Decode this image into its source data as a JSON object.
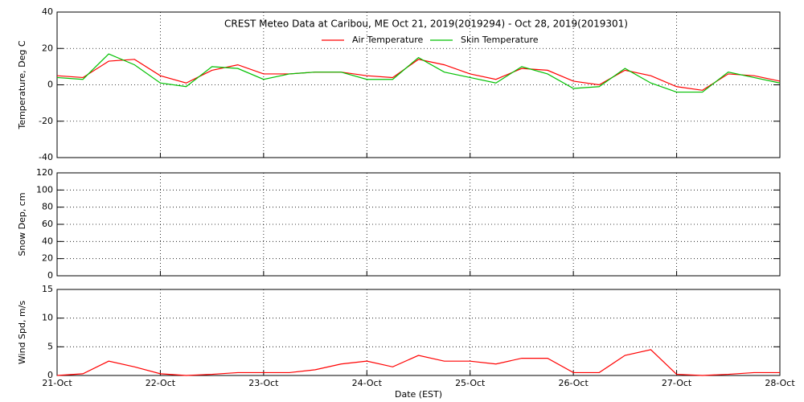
{
  "chart_data": [
    {
      "type": "line",
      "title": "CREST Meteo Data at Caribou, ME   Oct 21, 2019(2019294) - Oct 28, 2019(2019301)",
      "ylabel": "Temperature, Deg C",
      "legend": "top",
      "grid": true,
      "xlim": [
        0,
        7
      ],
      "xticks": [
        0,
        1,
        2,
        3,
        4,
        5,
        6,
        7
      ],
      "ylim": [
        -40,
        40
      ],
      "yticks": [
        -40,
        -20,
        0,
        20,
        40
      ],
      "x": [
        0,
        0.25,
        0.5,
        0.75,
        1,
        1.25,
        1.5,
        1.75,
        2,
        2.25,
        2.5,
        2.75,
        3,
        3.25,
        3.5,
        3.75,
        4,
        4.25,
        4.5,
        4.75,
        5,
        5.25,
        5.5,
        5.75,
        6,
        6.25,
        6.5,
        6.75,
        7
      ],
      "series": [
        {
          "name": "Air Temperature",
          "color": "#ff0000",
          "values": [
            5,
            4,
            13,
            14,
            5,
            1,
            8,
            11,
            6,
            6,
            7,
            7,
            5,
            4,
            14,
            11,
            6,
            3,
            9,
            8,
            2,
            0,
            8,
            5,
            -1,
            -3,
            6,
            5,
            2
          ]
        },
        {
          "name": "Skin Temperature",
          "color": "#00c000",
          "values": [
            4,
            3,
            17,
            11,
            1,
            -1,
            10,
            9,
            3,
            6,
            7,
            7,
            3,
            3,
            15,
            7,
            4,
            1,
            10,
            6,
            -2,
            -1,
            9,
            1,
            -4,
            -4,
            7,
            4,
            1
          ]
        }
      ]
    },
    {
      "type": "line",
      "ylabel": "Snow Dep, cm",
      "grid": true,
      "xlim": [
        0,
        7
      ],
      "xticks": [
        0,
        1,
        2,
        3,
        4,
        5,
        6,
        7
      ],
      "ylim": [
        0,
        120
      ],
      "yticks": [
        0,
        20,
        40,
        60,
        80,
        100,
        120
      ]
    },
    {
      "type": "line",
      "ylabel": "Wind Spd, m/s",
      "xlabel": "Date (EST)",
      "grid": true,
      "xlim": [
        0,
        7
      ],
      "xticks": [
        {
          "value": 0,
          "label": "21-Oct"
        },
        {
          "value": 1,
          "label": "22-Oct"
        },
        {
          "value": 2,
          "label": "23-Oct"
        },
        {
          "value": 3,
          "label": "24-Oct"
        },
        {
          "value": 4,
          "label": "25-Oct"
        },
        {
          "value": 5,
          "label": "26-Oct"
        },
        {
          "value": 6,
          "label": "27-Oct"
        },
        {
          "value": 7,
          "label": "28-Oct"
        }
      ],
      "ylim": [
        0,
        15
      ],
      "yticks": [
        0,
        5,
        10,
        15
      ],
      "x": [
        0,
        0.25,
        0.5,
        0.75,
        1,
        1.25,
        1.5,
        1.75,
        2,
        2.25,
        2.5,
        2.75,
        3,
        3.25,
        3.5,
        3.75,
        4,
        4.25,
        4.5,
        4.75,
        5,
        5.25,
        5.5,
        5.75,
        6,
        6.25,
        6.5,
        6.75,
        7
      ],
      "series": [
        {
          "color": "#ff0000",
          "values": [
            0,
            0.3,
            2.5,
            1.5,
            0.3,
            0,
            0.2,
            0.5,
            0.5,
            0.5,
            1,
            2,
            2.5,
            1.5,
            3.5,
            2.5,
            2.5,
            2,
            3,
            3,
            0.5,
            0.5,
            3.5,
            4.5,
            0.2,
            0,
            0.2,
            0.5,
            0.5
          ]
        }
      ]
    }
  ]
}
